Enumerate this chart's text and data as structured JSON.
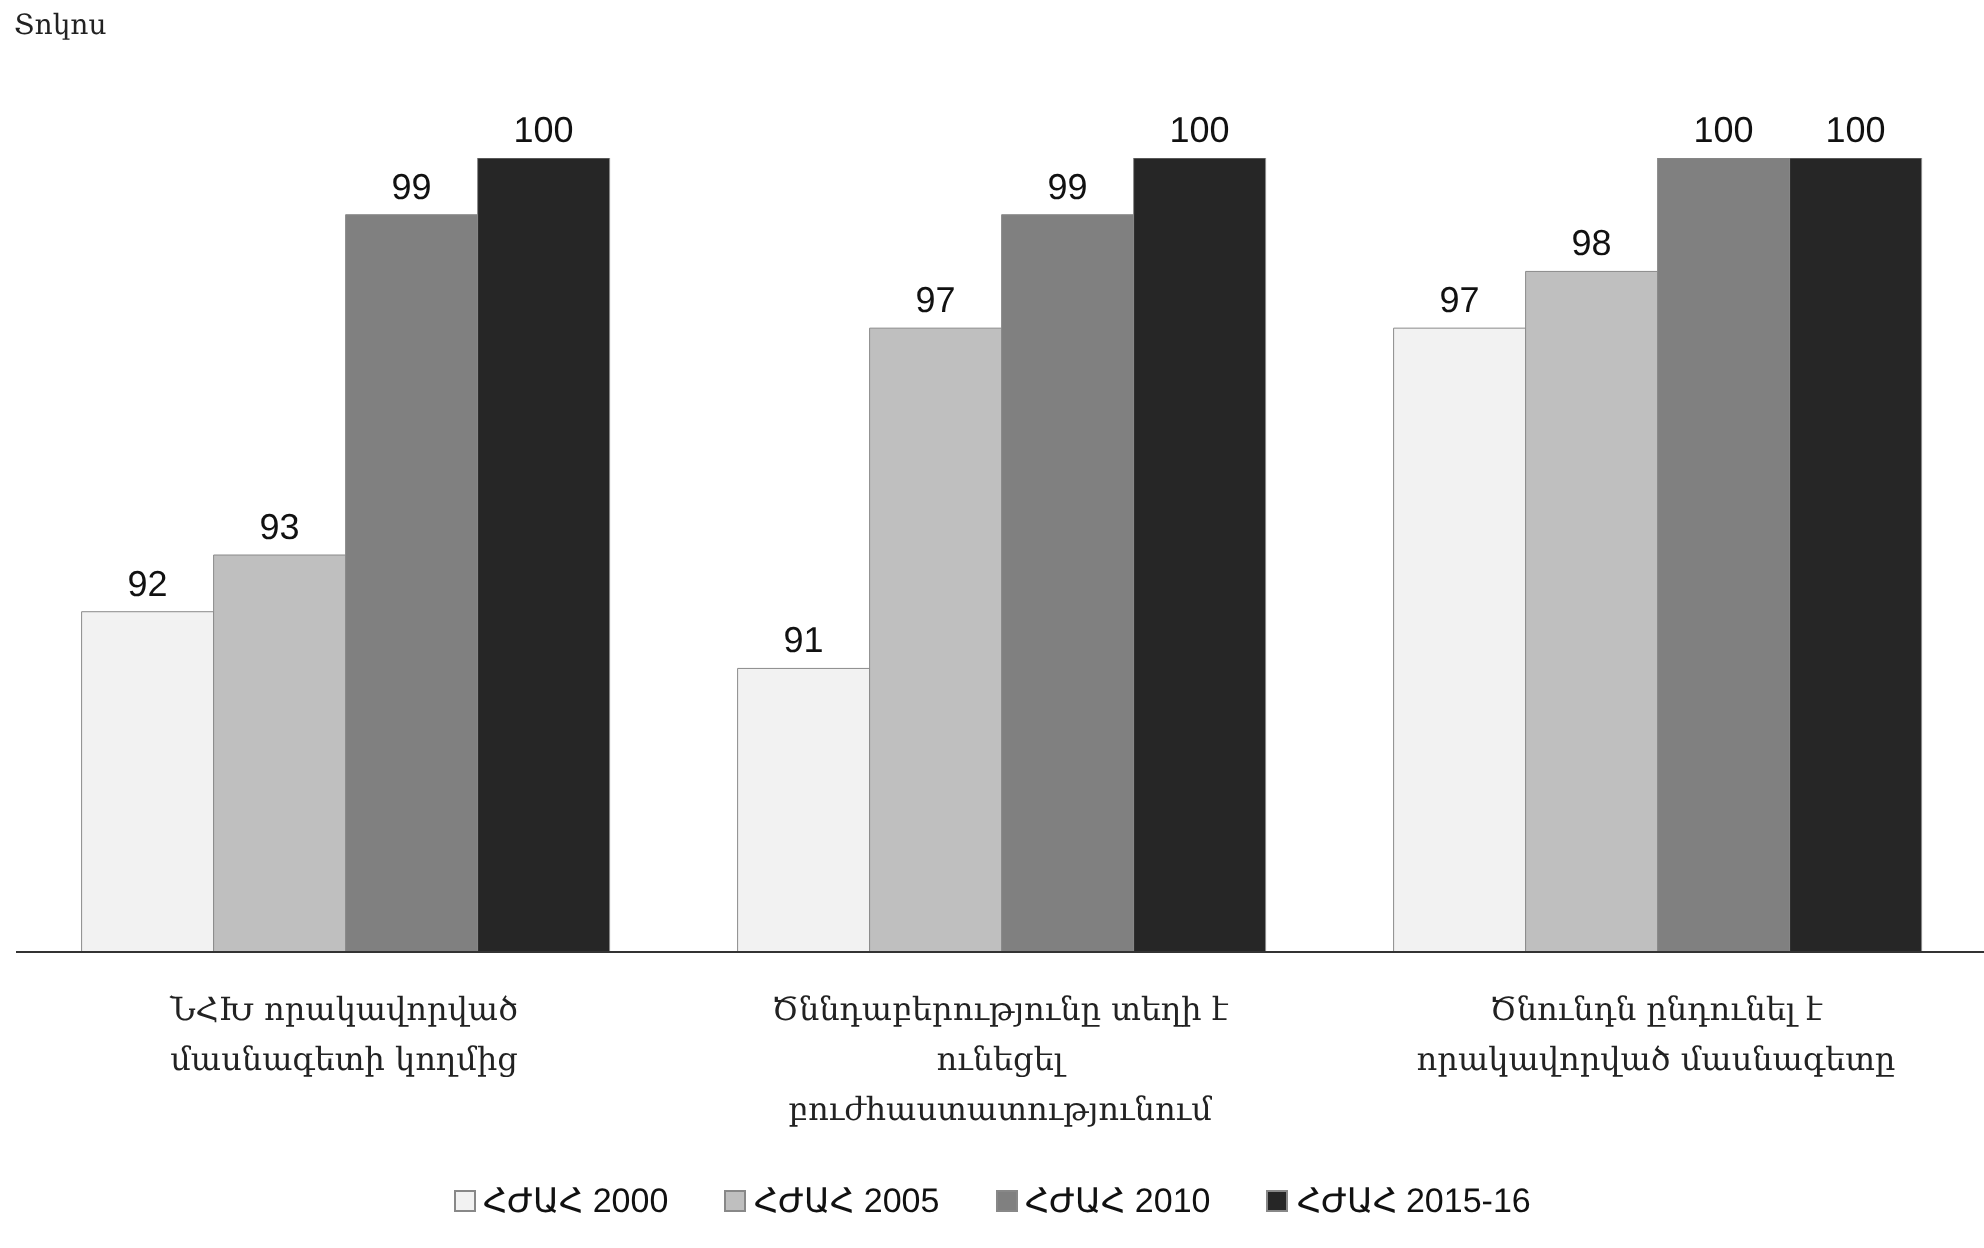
{
  "chart_data": {
    "type": "bar",
    "ylabel": "Տոկոս",
    "categories": [
      "ՆՀԽ որակավորված մասնագետի կողմից",
      "Ծննդաբերությունը տեղի է ունեցել բուժհաստատությունում",
      "Ծնունդն ընդունել է որակավորված մասնագետը"
    ],
    "series": [
      {
        "name": "ՀԺԱՀ 2000",
        "color": "#f2f2f2",
        "values": [
          92,
          91,
          97
        ]
      },
      {
        "name": "ՀԺԱՀ 2005",
        "color": "#bfbfbf",
        "values": [
          93,
          97,
          98
        ]
      },
      {
        "name": "ՀԺԱՀ 2010",
        "color": "#808080",
        "values": [
          99,
          99,
          100
        ]
      },
      {
        "name": "ՀԺԱՀ 2015-16",
        "color": "#262626",
        "values": [
          100,
          100,
          100
        ]
      }
    ],
    "ylim": [
      86,
      100
    ],
    "data_labels": true,
    "legend": "bottom",
    "grid": false
  }
}
